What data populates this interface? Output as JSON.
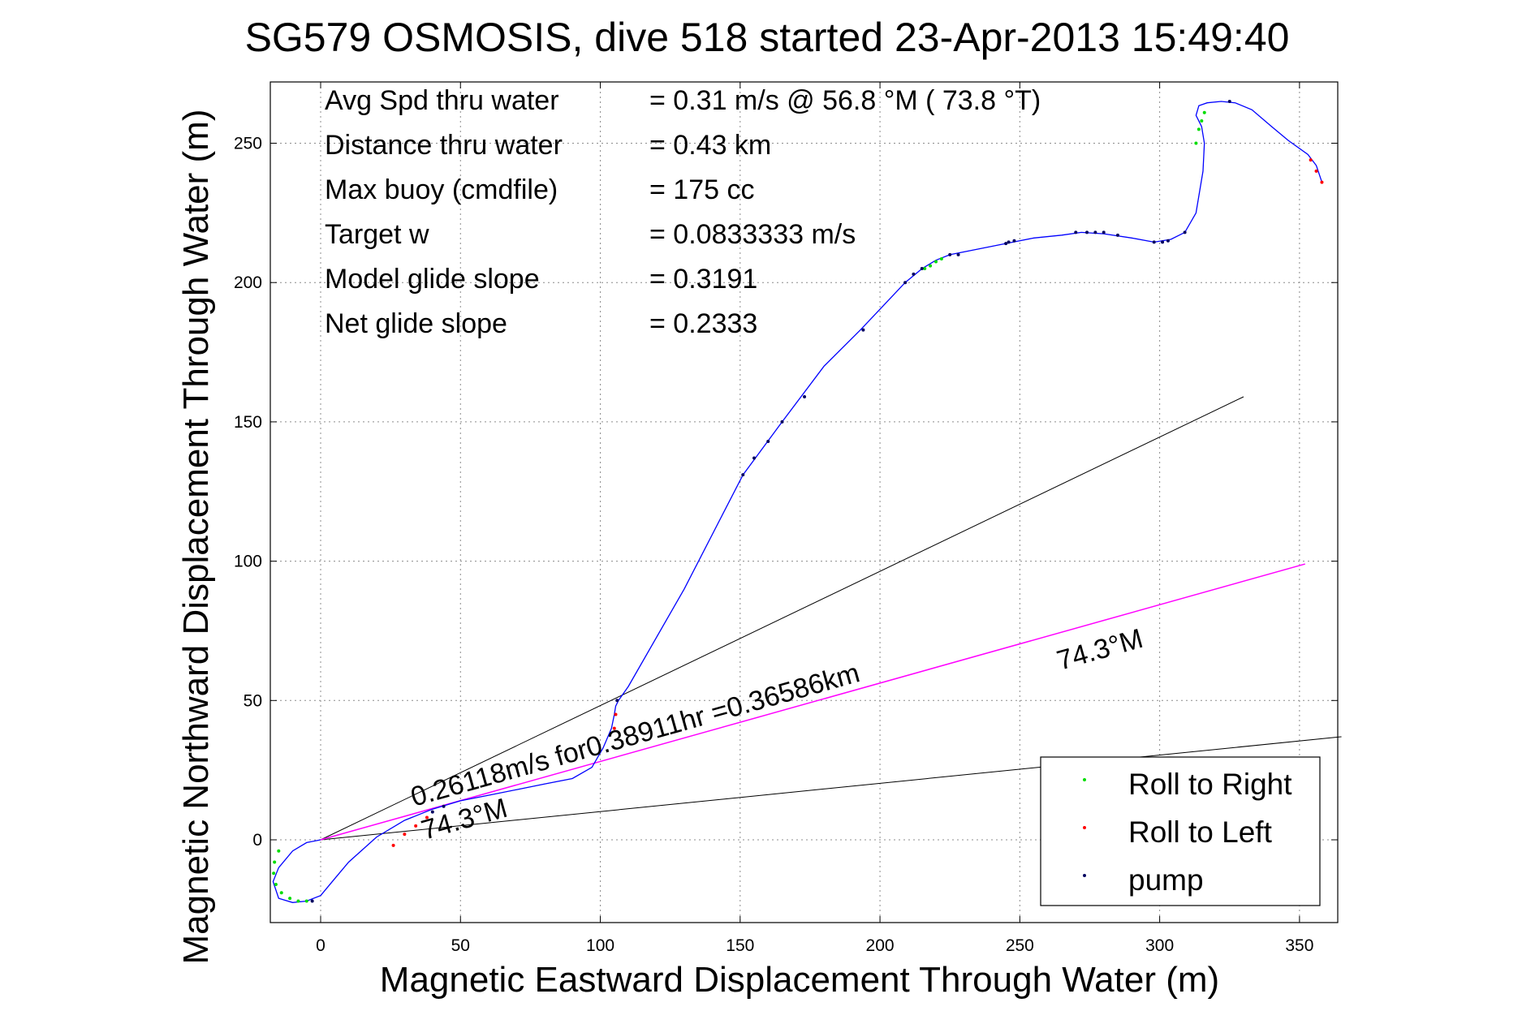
{
  "title": "SG579 OSMOSIS, dive 518 started 23-Apr-2013 15:49:40",
  "info_rows": [
    {
      "label": "Avg Spd thru water",
      "value": "=  0.31 m/s @  56.8 °M ( 73.8 °T)"
    },
    {
      "label": "Distance thru water",
      "value": "=  0.43 km"
    },
    {
      "label": "Max buoy (cmdfile)",
      "value": "= 175 cc"
    },
    {
      "label": "Target w",
      "value": "= 0.0833333 m/s"
    },
    {
      "label": "Model glide slope",
      "value": "= 0.3191"
    },
    {
      "label": "Net glide slope",
      "value": "= 0.2333"
    }
  ],
  "annotations": {
    "speed_label": "0.26118m/s for0.38911hr =0.36586km",
    "heading_label_far": "74.3°M",
    "heading_label_near": "74.3°M"
  },
  "legend": {
    "items": [
      {
        "label": "Roll to Right",
        "color": "#00dd00"
      },
      {
        "label": "Roll to Left",
        "color": "#ff0000"
      },
      {
        "label": "pump",
        "color": "#000060"
      }
    ],
    "placement": "bottom-right"
  },
  "chart_data": {
    "type": "line",
    "xlabel": "Magnetic Eastward Displacement Through Water (m)",
    "ylabel": "Magnetic Northward Displacement Through Water (m)",
    "xlim": [
      -17,
      365
    ],
    "ylim": [
      -30,
      272
    ],
    "xticks": [
      0,
      50,
      100,
      150,
      200,
      250,
      300,
      350
    ],
    "yticks": [
      0,
      50,
      100,
      150,
      200,
      250
    ],
    "grid": true,
    "colors": {
      "track": "#0000ff",
      "net_line": "#ff00ff",
      "cone": "#000000"
    },
    "track": {
      "x": [
        0,
        -5,
        -10,
        -15,
        -17,
        -15,
        -10,
        -5,
        0,
        5,
        10,
        20,
        30,
        40,
        50,
        60,
        70,
        80,
        90,
        97,
        101,
        104,
        105,
        105.5,
        106.5,
        110,
        130,
        151,
        165,
        180,
        193,
        209,
        215,
        220,
        225,
        235,
        245,
        255,
        265,
        272,
        280,
        290,
        298,
        304,
        309,
        313,
        315.5,
        316,
        315,
        313,
        314,
        317,
        322,
        327,
        333,
        340,
        346,
        353,
        356,
        358
      ],
      "y": [
        0,
        -1,
        -4,
        -10,
        -15,
        -21,
        -22.5,
        -22,
        -20,
        -14,
        -8,
        1,
        7,
        11,
        14,
        16,
        18,
        20,
        22,
        26,
        33,
        40,
        45,
        48,
        50,
        55,
        90,
        131,
        150,
        170,
        183,
        200,
        205,
        208,
        210,
        212,
        214,
        216,
        217,
        218,
        217.5,
        216,
        214.5,
        215.5,
        218,
        225,
        240,
        250,
        256,
        260,
        263.5,
        264.5,
        265,
        264.5,
        262,
        256,
        251,
        246,
        242,
        236
      ]
    },
    "net_line": {
      "x": [
        0,
        352
      ],
      "y": [
        0,
        99
      ]
    },
    "cone_lines": [
      {
        "x": [
          0,
          330
        ],
        "y": [
          0,
          159
        ]
      },
      {
        "x": [
          0,
          365
        ],
        "y": [
          0,
          37
        ]
      }
    ],
    "roll_right": {
      "x": [
        -15,
        -16.5,
        -16.8,
        -16,
        -14,
        -11,
        -8,
        -5,
        313,
        314,
        315,
        316,
        216,
        218,
        220,
        222
      ],
      "y": [
        -4,
        -8,
        -12,
        -16,
        -19,
        -21,
        -22,
        -22,
        250,
        255,
        258,
        261,
        205,
        206,
        207.5,
        208.5
      ]
    },
    "roll_left": {
      "x": [
        26,
        30,
        34,
        38,
        105,
        105.5,
        354,
        356,
        358
      ],
      "y": [
        -2,
        2,
        5,
        8,
        40,
        45,
        244,
        240,
        236
      ]
    },
    "pump": {
      "x": [
        -3,
        40,
        44,
        106,
        151,
        155,
        160,
        165,
        173,
        194,
        209,
        212,
        215,
        225,
        228,
        245,
        246,
        248,
        270,
        274,
        277,
        280,
        285,
        298,
        301,
        303,
        309,
        325
      ],
      "y": [
        -22,
        10,
        12,
        50,
        131,
        137,
        143,
        150,
        159,
        183,
        200,
        203,
        205,
        210,
        210,
        214,
        214.5,
        215,
        218,
        218,
        218,
        218,
        217,
        214.5,
        214.5,
        215,
        218,
        265
      ]
    }
  }
}
